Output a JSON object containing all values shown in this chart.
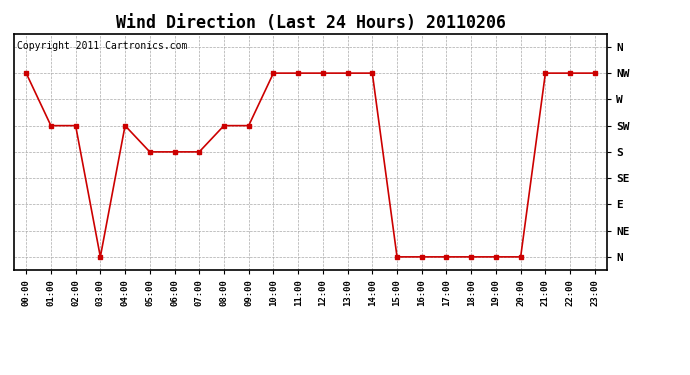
{
  "title": "Wind Direction (Last 24 Hours) 20110206",
  "copyright": "Copyright 2011 Cartronics.com",
  "x_labels": [
    "00:00",
    "01:00",
    "02:00",
    "03:00",
    "04:00",
    "05:00",
    "06:00",
    "07:00",
    "08:00",
    "09:00",
    "10:00",
    "11:00",
    "12:00",
    "13:00",
    "14:00",
    "15:00",
    "16:00",
    "17:00",
    "18:00",
    "19:00",
    "20:00",
    "21:00",
    "22:00",
    "23:00"
  ],
  "y_labels": [
    "N",
    "NE",
    "E",
    "SE",
    "S",
    "SW",
    "W",
    "NW",
    "N"
  ],
  "y_values": [
    0,
    1,
    2,
    3,
    4,
    5,
    6,
    7,
    8
  ],
  "data_hours": [
    0,
    1,
    2,
    3,
    4,
    5,
    6,
    7,
    8,
    9,
    10,
    11,
    12,
    13,
    14,
    15,
    16,
    17,
    18,
    19,
    20,
    21,
    22,
    23
  ],
  "data_dirs": [
    7,
    5,
    5,
    0,
    5,
    4,
    4,
    4,
    5,
    5,
    7,
    7,
    7,
    7,
    7,
    0,
    0,
    0,
    0,
    0,
    0,
    7,
    7,
    7
  ],
  "line_color": "#cc0000",
  "marker": "s",
  "marker_size": 3,
  "bg_color": "#ffffff",
  "grid_color": "#aaaaaa",
  "title_fontsize": 12,
  "tick_fontsize": 8,
  "copyright_fontsize": 7
}
